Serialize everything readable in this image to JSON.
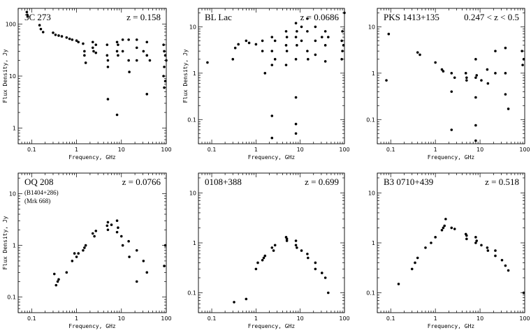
{
  "chart_data": [
    {
      "type": "scatter",
      "title": "3C 273",
      "redshift": "z = 0.158",
      "notes": [],
      "xlabel": "Frequency, GHz",
      "ylabel": "Flux Density, Jy",
      "x_scale": "log",
      "y_scale": "log",
      "xlim": [
        0.05,
        100
      ],
      "ylim": [
        0.5,
        200
      ],
      "xticks": [
        "0.1",
        "1",
        "10",
        "100"
      ],
      "yticks": [
        "1",
        "10",
        "100"
      ],
      "x": [
        0.078,
        0.08,
        0.082,
        0.15,
        0.16,
        0.18,
        0.3,
        0.34,
        0.4,
        0.47,
        0.6,
        0.7,
        0.8,
        1.0,
        1.1,
        1.4,
        1.5,
        1.5,
        1.6,
        2.3,
        2.3,
        2.4,
        2.7,
        2.7,
        4.8,
        4.8,
        5.0,
        5.0,
        5.0,
        8.0,
        8.0,
        8.4,
        8.4,
        10.7,
        10.7,
        14.5,
        14.5,
        15.0,
        22.0,
        22.0,
        22.0,
        31.0,
        37.0,
        37.0,
        37.0,
        43.0,
        87.0,
        87.0,
        90.0,
        90.0,
        90.0,
        95.0,
        95.0,
        100.0
      ],
      "y": [
        170,
        150,
        140,
        95,
        80,
        70,
        68,
        62,
        60,
        58,
        55,
        52,
        50,
        48,
        45,
        42,
        30,
        25,
        18,
        45,
        35,
        30,
        40,
        28,
        40,
        25,
        20,
        15,
        3.6,
        45,
        30,
        40,
        25,
        50,
        30,
        50,
        20,
        12,
        50,
        35,
        20,
        30,
        45,
        25,
        4.5,
        20,
        40,
        10,
        30,
        15,
        6,
        25,
        8,
        20
      ],
      "points": [
        [
          8.0,
          1.8
        ]
      ]
    },
    {
      "type": "scatter",
      "title": "BL Lac",
      "redshift": "z = 0.0686",
      "notes": [],
      "xlabel": "Frequency, GHz",
      "ylabel": "Flux Density, Jy",
      "x_scale": "log",
      "y_scale": "log",
      "xlim": [
        0.05,
        100
      ],
      "ylim": [
        0.03,
        25
      ],
      "xticks": [
        "0.1",
        "1",
        "10",
        "100"
      ],
      "yticks": [
        "0.1",
        "1",
        "10"
      ],
      "x": [
        0.08,
        0.3,
        0.34,
        0.4,
        0.6,
        0.7,
        1.0,
        1.4,
        1.4,
        1.6,
        2.3,
        2.3,
        2.3,
        2.3,
        2.3,
        2.7,
        2.7,
        4.8,
        4.8,
        4.8,
        5.0,
        5.0,
        8.0,
        8.0,
        8.0,
        8.0,
        8.0,
        8.0,
        8.4,
        8.4,
        10.7,
        10.7,
        14.5,
        14.5,
        14.5,
        15.0,
        22.0,
        22.0,
        22.0,
        31.0,
        37.0,
        37.0,
        37.0,
        43.0,
        87.0,
        87.0,
        90.0,
        90.0,
        95.0,
        100.0
      ],
      "y": [
        1.7,
        2.0,
        3.5,
        4.2,
        5.0,
        4.5,
        4.2,
        5.0,
        3.0,
        1.0,
        6.0,
        3.0,
        1.5,
        0.12,
        0.04,
        5.0,
        2.0,
        8.0,
        4.0,
        1.5,
        6.0,
        3.0,
        12.0,
        6.0,
        2.0,
        0.3,
        0.08,
        0.05,
        8.0,
        4.0,
        10.0,
        5.0,
        15.0,
        8.0,
        3.0,
        2.0,
        10.0,
        5.0,
        2.5,
        6.0,
        8.0,
        4.0,
        1.8,
        6.0,
        5.0,
        2.0,
        8.0,
        3.0,
        4.0,
        20.0
      ],
      "points": []
    },
    {
      "type": "scatter",
      "title": "PKS 1413+135",
      "redshift": "0.247 < z < 0.5",
      "notes": [],
      "xlabel": "Frequency, GHz",
      "ylabel": "",
      "x_scale": "log",
      "y_scale": "log",
      "xlim": [
        0.05,
        100
      ],
      "ylim": [
        0.03,
        25
      ],
      "xticks": [
        "0.1",
        "1",
        "10",
        "100"
      ],
      "yticks": [
        "0.1",
        "1",
        "10"
      ],
      "x": [
        0.08,
        0.09,
        0.4,
        0.45,
        1.0,
        1.4,
        1.5,
        2.3,
        2.3,
        2.3,
        2.7,
        4.8,
        5.0,
        5.0,
        8.0,
        8.0,
        8.0,
        8.4,
        10.7,
        14.5,
        15.0,
        22.0,
        22.0,
        37.0,
        37.0,
        37.0,
        43.0,
        87.0,
        90.0,
        95.0
      ],
      "y": [
        0.7,
        7.0,
        2.8,
        2.5,
        1.7,
        1.2,
        1.1,
        1.0,
        0.4,
        0.06,
        0.8,
        1.0,
        0.8,
        0.7,
        2.0,
        0.8,
        0.3,
        0.9,
        0.7,
        1.2,
        0.6,
        3.0,
        1.0,
        3.5,
        1.0,
        0.35,
        0.17,
        3.0,
        1.5,
        2.0
      ],
      "points": [
        [
          8.0,
          0.075
        ],
        [
          8.0,
          0.035
        ]
      ]
    },
    {
      "type": "scatter",
      "title": "OQ 208",
      "redshift": "z = 0.0766",
      "notes": [
        "(B1404+286)",
        "(Mrk 668)"
      ],
      "xlabel": "Frequency, GHz",
      "ylabel": "Flux Density, Jy",
      "x_scale": "log",
      "y_scale": "log",
      "xlim": [
        0.05,
        100
      ],
      "ylim": [
        0.05,
        25
      ],
      "xticks": [
        "0.1",
        "1",
        "10",
        "100"
      ],
      "yticks": [
        "0.1",
        "1",
        "10"
      ],
      "x": [
        0.32,
        0.35,
        0.38,
        0.4,
        0.6,
        0.8,
        0.9,
        1.0,
        1.1,
        1.4,
        1.5,
        1.6,
        2.3,
        2.5,
        2.7,
        4.8,
        5.0,
        5.0,
        6.0,
        8.0,
        8.0,
        8.4,
        10.0,
        10.7,
        14.5,
        15.0,
        22.0,
        22.0,
        31.0,
        37.0,
        90.0,
        95.0
      ],
      "y": [
        0.28,
        0.17,
        0.2,
        0.22,
        0.3,
        0.5,
        0.7,
        0.6,
        0.7,
        0.8,
        0.9,
        1.0,
        1.7,
        1.5,
        1.9,
        2.4,
        2.8,
        2.0,
        2.5,
        3.0,
        1.8,
        2.2,
        1.5,
        1.0,
        1.2,
        0.6,
        0.8,
        0.2,
        0.5,
        0.3,
        0.4,
        1.0
      ],
      "points": []
    },
    {
      "type": "scatter",
      "title": "0108+388",
      "redshift": "z = 0.699",
      "notes": [],
      "xlabel": "Frequency, GHz",
      "ylabel": "",
      "x_scale": "log",
      "y_scale": "log",
      "xlim": [
        0.05,
        100
      ],
      "ylim": [
        0.04,
        25
      ],
      "xticks": [
        "0.1",
        "1",
        "10",
        "100"
      ],
      "yticks": [
        "0.1",
        "1",
        "10"
      ],
      "x": [
        0.32,
        0.6,
        1.0,
        1.1,
        1.4,
        1.5,
        1.6,
        2.3,
        2.5,
        2.7,
        4.8,
        5.0,
        5.0,
        8.0,
        8.0,
        8.4,
        10.7,
        14.5,
        15.0,
        22.0,
        22.0,
        31.0,
        37.0,
        43.0
      ],
      "y": [
        0.065,
        0.075,
        0.3,
        0.4,
        0.45,
        0.5,
        0.55,
        0.8,
        0.7,
        0.9,
        1.3,
        1.2,
        1.1,
        1.1,
        0.9,
        0.8,
        0.7,
        0.6,
        0.5,
        0.4,
        0.3,
        0.25,
        0.2,
        0.1
      ],
      "points": []
    },
    {
      "type": "scatter",
      "title": "B3 0710+439",
      "redshift": "z = 0.518",
      "notes": [],
      "xlabel": "Frequency, GHz",
      "ylabel": "",
      "x_scale": "log",
      "y_scale": "log",
      "xlim": [
        0.05,
        100
      ],
      "ylim": [
        0.04,
        25
      ],
      "xticks": [
        "0.1",
        "1",
        "10",
        "100"
      ],
      "yticks": [
        "0.1",
        "1",
        "10"
      ],
      "x": [
        0.15,
        0.3,
        0.35,
        0.4,
        0.6,
        0.8,
        1.0,
        1.4,
        1.5,
        1.6,
        1.7,
        2.3,
        2.7,
        4.8,
        5.0,
        5.0,
        8.0,
        8.0,
        8.4,
        10.7,
        14.5,
        15.0,
        22.0,
        22.0,
        31.0,
        37.0,
        43.0,
        95.0
      ],
      "y": [
        0.15,
        0.3,
        0.4,
        0.5,
        0.8,
        1.0,
        1.3,
        1.8,
        2.0,
        2.2,
        3.0,
        2.0,
        1.9,
        1.5,
        1.4,
        1.2,
        1.3,
        1.0,
        1.1,
        0.9,
        0.8,
        0.7,
        0.7,
        0.55,
        0.45,
        0.35,
        0.28,
        0.1
      ],
      "points": []
    }
  ]
}
